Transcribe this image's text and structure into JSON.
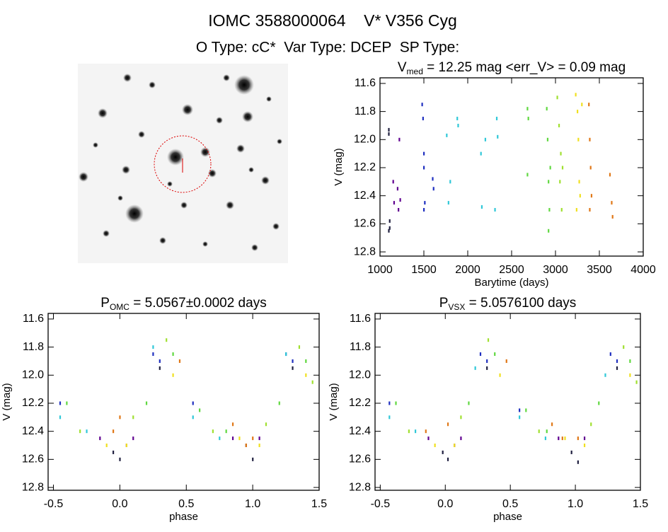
{
  "header": {
    "title": "IOMC 3588000064    V* V356 Cyg",
    "subtitle": "O Type: cC*  Var Type: DCEP  SP Type:"
  },
  "chart_data": [
    {
      "type": "scatter",
      "title": [
        "V",
        "med",
        " = 12.25 mag <err_V> = 0.09 mag"
      ],
      "x_label": "Barytime (days)",
      "y_label": "V (mag)",
      "xlim": [
        1000,
        4000
      ],
      "xticks": [
        1000,
        1500,
        2000,
        2500,
        3000,
        3500,
        4000
      ],
      "ylim": [
        12.83,
        11.56
      ],
      "yticks": [
        11.6,
        11.8,
        {
          "value": 12,
          "label": "12.0"
        },
        12.2,
        12.4,
        12.6,
        12.8
      ],
      "series": [
        {
          "color": "#202040",
          "x": [
            1100,
            1100,
            1110,
            1110,
            1100
          ],
          "values": [
            11.93,
            11.96,
            12.58,
            12.63,
            12.65
          ]
        },
        {
          "color": "#600090",
          "x": [
            1150,
            1160,
            1200,
            1220,
            1230,
            1210
          ],
          "values": [
            12.3,
            12.45,
            12.35,
            12.0,
            12.43,
            12.5
          ]
        },
        {
          "color": "#2030c0",
          "x": [
            1480,
            1490,
            1500,
            1500,
            1510,
            1500,
            1600,
            1610
          ],
          "values": [
            11.75,
            11.85,
            12.1,
            12.2,
            12.45,
            12.5,
            12.28,
            12.35
          ]
        },
        {
          "color": "#30c8d8",
          "x": [
            1760,
            1780,
            1800,
            1880,
            1890,
            2150,
            2160,
            2200,
            2310,
            2330,
            2340
          ],
          "values": [
            11.97,
            12.45,
            12.3,
            11.85,
            11.9,
            12.1,
            12.48,
            12.0,
            12.5,
            11.85,
            11.98
          ]
        },
        {
          "color": "#60d840",
          "x": [
            2680,
            2690,
            2680,
            2900,
            2910,
            2920,
            2930,
            2920,
            2940
          ],
          "values": [
            11.78,
            11.85,
            12.25,
            11.78,
            12.0,
            12.3,
            12.5,
            12.65,
            12.2
          ]
        },
        {
          "color": "#a0e030",
          "x": [
            3020,
            3040,
            3060,
            3050,
            3070,
            3080
          ],
          "values": [
            11.7,
            11.9,
            12.1,
            12.3,
            12.5,
            12.2
          ]
        },
        {
          "color": "#f0e020",
          "x": [
            3230,
            3250,
            3260,
            3270,
            3240,
            3280,
            3300
          ],
          "values": [
            11.68,
            11.8,
            12.0,
            12.3,
            12.5,
            12.4,
            11.75
          ]
        },
        {
          "color": "#e07818",
          "x": [
            3380,
            3390,
            3400,
            3410,
            3390,
            3620,
            3640,
            3650
          ],
          "values": [
            11.75,
            12.0,
            12.2,
            12.4,
            12.5,
            12.25,
            12.45,
            12.55
          ]
        }
      ]
    },
    {
      "type": "scatter",
      "title": [
        "P",
        "OMC",
        " = 5.0567±0.0002 days"
      ],
      "x_label": "phase",
      "y_label": "V (mag)",
      "xlim": [
        -0.54,
        1.5
      ],
      "xticks": [
        -0.5,
        {
          "value": 0,
          "label": "0.0"
        },
        0.5,
        {
          "value": 1,
          "label": "1.0"
        },
        1.5
      ],
      "ylim": [
        12.82,
        11.56
      ],
      "yticks": [
        11.6,
        11.8,
        {
          "value": 12,
          "label": "12.0"
        },
        12.2,
        12.4,
        12.6,
        12.8
      ],
      "series": [
        {
          "color": "#202040",
          "x": [
            -0.05,
            0.0,
            0.95,
            1.0,
            0.3,
            1.3
          ],
          "values": [
            12.55,
            12.6,
            12.5,
            12.6,
            11.95,
            11.95
          ]
        },
        {
          "color": "#600090",
          "x": [
            0.05,
            0.1,
            1.05,
            -0.15,
            0.85
          ],
          "values": [
            12.5,
            12.45,
            12.45,
            12.45,
            12.45
          ]
        },
        {
          "color": "#2030c0",
          "x": [
            0.25,
            0.3,
            1.25,
            1.3,
            -0.45,
            0.55
          ],
          "values": [
            11.85,
            11.9,
            11.85,
            11.9,
            12.2,
            12.2
          ]
        },
        {
          "color": "#30c8d8",
          "x": [
            -0.45,
            0.25,
            0.55,
            1.25,
            0.75,
            -0.25
          ],
          "values": [
            12.3,
            11.8,
            12.3,
            11.85,
            12.45,
            12.4
          ]
        },
        {
          "color": "#60d840",
          "x": [
            -0.4,
            0.2,
            0.4,
            0.6,
            1.2,
            1.4,
            0.8
          ],
          "values": [
            12.2,
            12.2,
            11.85,
            12.25,
            12.2,
            11.9,
            12.4
          ]
        },
        {
          "color": "#a0e030",
          "x": [
            -0.3,
            0.1,
            0.35,
            0.7,
            1.1,
            1.35,
            1.45
          ],
          "values": [
            12.4,
            12.3,
            11.75,
            12.4,
            12.35,
            11.8,
            12.05
          ]
        },
        {
          "color": "#f0e020",
          "x": [
            -0.1,
            0.05,
            0.4,
            0.9,
            1.05,
            1.4
          ],
          "values": [
            12.5,
            12.5,
            12.0,
            12.45,
            12.5,
            12.0
          ]
        },
        {
          "color": "#e07818",
          "x": [
            -0.05,
            0.0,
            0.45,
            0.95,
            1.0,
            0.85
          ],
          "values": [
            12.4,
            12.3,
            11.9,
            12.5,
            12.45,
            12.35
          ]
        }
      ]
    },
    {
      "type": "scatter",
      "title": [
        "P",
        "VSX",
        " = 5.0576100 days"
      ],
      "x_label": "phase",
      "y_label": "V (mag)",
      "xlim": [
        -0.54,
        1.5
      ],
      "xticks": [
        -0.5,
        {
          "value": 0,
          "label": "0.0"
        },
        0.5,
        {
          "value": 1,
          "label": "1.0"
        },
        1.5
      ],
      "ylim": [
        12.82,
        11.56
      ],
      "yticks": [
        11.6,
        11.8,
        {
          "value": 12,
          "label": "12.0"
        },
        12.2,
        12.4,
        12.6,
        12.8
      ],
      "series": [
        {
          "color": "#202040",
          "x": [
            -0.02,
            0.02,
            0.97,
            1.02,
            0.32,
            1.32
          ],
          "values": [
            12.55,
            12.6,
            12.55,
            12.62,
            11.95,
            11.95
          ]
        },
        {
          "color": "#600090",
          "x": [
            0.07,
            0.12,
            1.07,
            -0.13,
            0.87
          ],
          "values": [
            12.5,
            12.45,
            12.45,
            12.45,
            12.45
          ]
        },
        {
          "color": "#2030c0",
          "x": [
            0.27,
            0.32,
            1.27,
            1.32,
            -0.43,
            0.57
          ],
          "values": [
            11.85,
            11.9,
            11.85,
            11.9,
            12.2,
            12.25
          ]
        },
        {
          "color": "#30c8d8",
          "x": [
            -0.43,
            0.23,
            0.57,
            1.23,
            0.77,
            -0.23
          ],
          "values": [
            12.3,
            11.95,
            12.3,
            12.0,
            12.45,
            12.4
          ]
        },
        {
          "color": "#60d840",
          "x": [
            -0.38,
            0.18,
            0.38,
            0.62,
            1.18,
            1.42,
            0.78
          ],
          "values": [
            12.2,
            12.2,
            11.85,
            12.25,
            12.2,
            11.9,
            12.4
          ]
        },
        {
          "color": "#a0e030",
          "x": [
            -0.28,
            0.12,
            0.33,
            0.72,
            1.12,
            1.37,
            1.47
          ],
          "values": [
            12.4,
            12.3,
            11.75,
            12.4,
            12.35,
            11.8,
            12.05
          ]
        },
        {
          "color": "#f0e020",
          "x": [
            -0.08,
            0.07,
            0.42,
            0.92,
            1.07,
            1.42
          ],
          "values": [
            12.5,
            12.5,
            12.0,
            12.45,
            12.5,
            12.0
          ]
        },
        {
          "color": "#e07818",
          "x": [
            -0.15,
            0.02,
            0.47,
            0.9,
            1.02,
            0.82
          ],
          "values": [
            12.4,
            12.35,
            11.9,
            12.45,
            12.45,
            12.35
          ]
        }
      ]
    }
  ]
}
